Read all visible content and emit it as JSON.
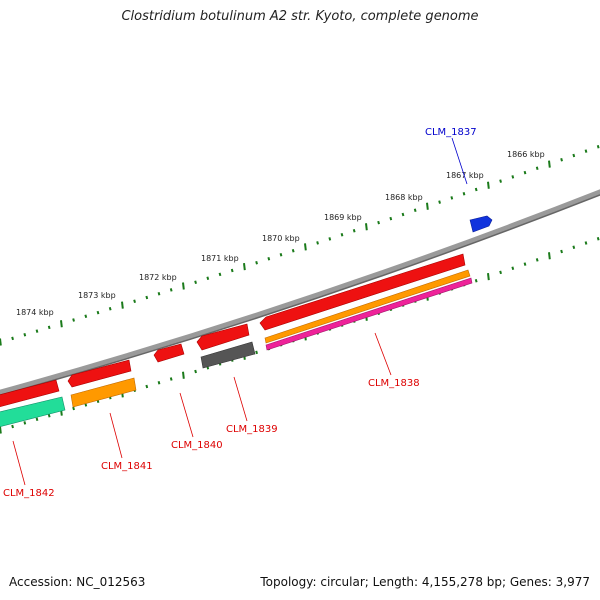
{
  "title": "Clostridium botulinum A2 str. Kyoto, complete genome",
  "footer": {
    "accession": "Accession: NC_012563",
    "topology": "Topology: circular; Length: 4,155,278 bp; Genes: 3,977"
  },
  "ruler_labels": [
    "1866 kbp",
    "1867 kbp",
    "1868 kbp",
    "1869 kbp",
    "1870 kbp",
    "1871 kbp",
    "1872 kbp",
    "1873 kbp",
    "1874 kbp"
  ],
  "genes": [
    {
      "label": "CLM_1837",
      "color": "#0000cc"
    },
    {
      "label": "CLM_1838",
      "color": "#dd0000"
    },
    {
      "label": "CLM_1839",
      "color": "#dd0000"
    },
    {
      "label": "CLM_1840",
      "color": "#dd0000"
    },
    {
      "label": "CLM_1841",
      "color": "#dd0000"
    },
    {
      "label": "CLM_1842",
      "color": "#dd0000"
    }
  ],
  "colors": {
    "backbone": "#808080",
    "tick": "#1a7a1a",
    "red": "#ee1111",
    "orange": "#ff9900",
    "magenta": "#ee2299",
    "grey": "#555555",
    "green": "#22dd99",
    "blue": "#1133dd"
  }
}
